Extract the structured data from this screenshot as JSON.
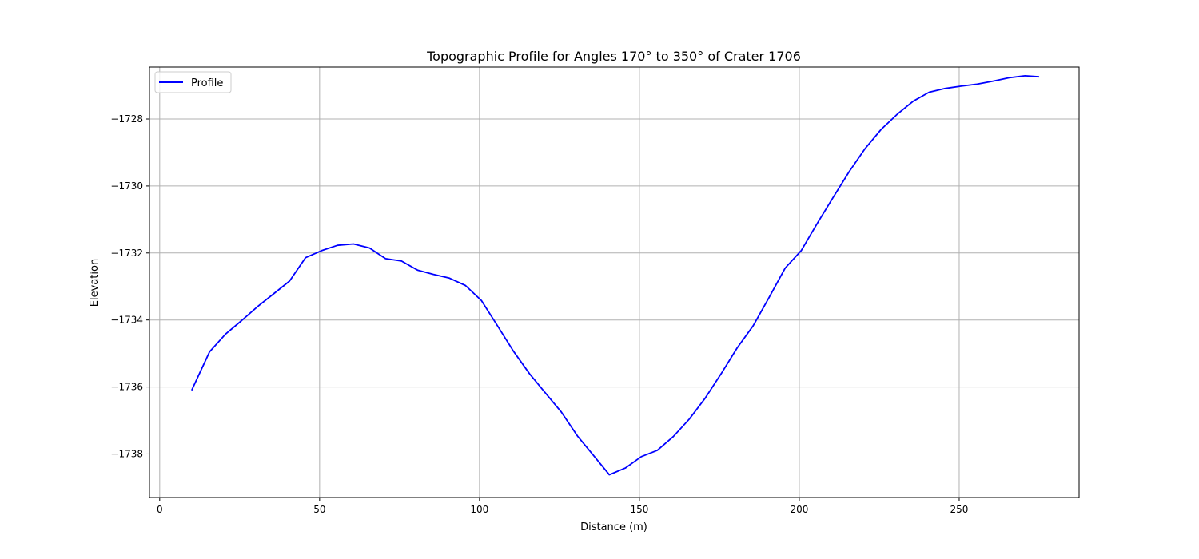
{
  "chart_data": {
    "type": "line",
    "title": "Topographic Profile for Angles 170° to 350° of Crater 1706",
    "xlabel": "Distance (m)",
    "ylabel": "Elevation",
    "xlim": [
      -3.2,
      287.5
    ],
    "ylim": [
      -1739.3,
      -1726.45
    ],
    "xticks": [
      0,
      50,
      100,
      150,
      200,
      250
    ],
    "xtick_labels": [
      "0",
      "50",
      "100",
      "150",
      "200",
      "250"
    ],
    "yticks": [
      -1738,
      -1736,
      -1734,
      -1732,
      -1730,
      -1728
    ],
    "ytick_labels": [
      "−1738",
      "−1736",
      "−1734",
      "−1732",
      "−1730",
      "−1728"
    ],
    "grid": true,
    "legend_position": "upper-left",
    "series": [
      {
        "name": "Profile",
        "color": "#0000ff",
        "x": [
          10,
          15.6,
          20.6,
          25.6,
          30.6,
          35.6,
          40.6,
          45.6,
          50.6,
          55.6,
          60.6,
          65.6,
          70.6,
          75.6,
          80.6,
          85.6,
          90.6,
          95.6,
          100.6,
          105.6,
          110.6,
          115.6,
          120.6,
          125.6,
          130.6,
          135.6,
          140.6,
          145.6,
          150.6,
          155.6,
          160.6,
          165.6,
          170.6,
          175.6,
          180.6,
          185.6,
          190.6,
          195.6,
          200.6,
          205.6,
          210.6,
          215.6,
          220.6,
          225.6,
          230.6,
          235.6,
          240.6,
          245.6,
          250.6,
          255.6,
          260.6,
          265.6,
          270.6,
          275
        ],
        "y": [
          -1736.1,
          -1734.95,
          -1734.42,
          -1734.02,
          -1733.6,
          -1733.22,
          -1732.84,
          -1732.14,
          -1731.93,
          -1731.77,
          -1731.73,
          -1731.85,
          -1732.17,
          -1732.24,
          -1732.51,
          -1732.64,
          -1732.75,
          -1732.97,
          -1733.42,
          -1734.17,
          -1734.93,
          -1735.6,
          -1736.18,
          -1736.75,
          -1737.46,
          -1738.04,
          -1738.62,
          -1738.42,
          -1738.08,
          -1737.89,
          -1737.48,
          -1736.96,
          -1736.33,
          -1735.6,
          -1734.83,
          -1734.17,
          -1733.32,
          -1732.45,
          -1731.93,
          -1731.12,
          -1730.34,
          -1729.57,
          -1728.88,
          -1728.31,
          -1727.86,
          -1727.47,
          -1727.2,
          -1727.09,
          -1727.02,
          -1726.96,
          -1726.87,
          -1726.77,
          -1726.71,
          -1726.74
        ]
      }
    ]
  }
}
